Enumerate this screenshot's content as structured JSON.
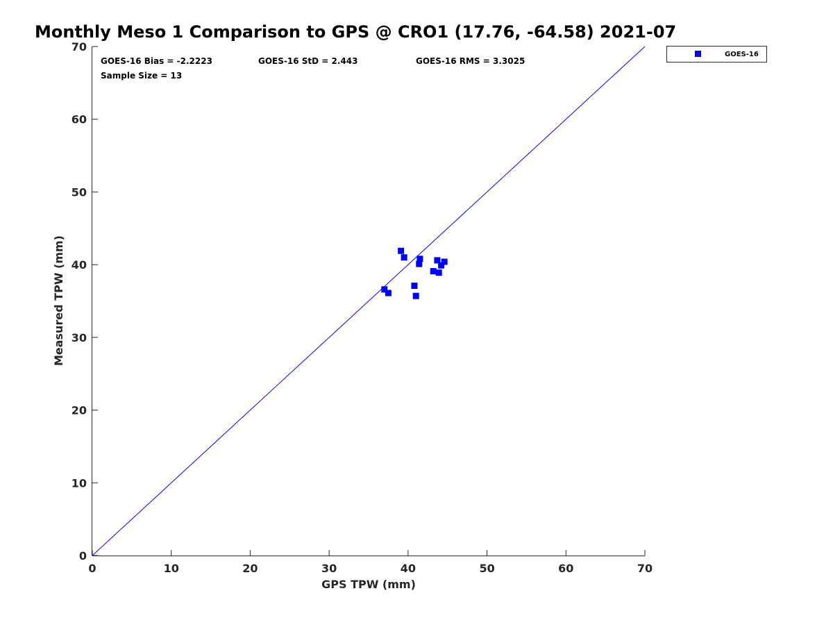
{
  "chart_data": {
    "type": "scatter",
    "title": "Monthly Meso 1 Comparison to GPS @ CRO1 (17.76, -64.58) 2021-07",
    "xlabel": "GPS TPW (mm)",
    "ylabel": "Measured TPW (mm)",
    "xlim": [
      0,
      70
    ],
    "ylim": [
      0,
      70
    ],
    "xticks": [
      "0",
      "10",
      "20",
      "30",
      "40",
      "50",
      "60",
      "70"
    ],
    "yticks": [
      "0",
      "10",
      "20",
      "30",
      "40",
      "50",
      "60",
      "70"
    ],
    "grid": false,
    "legend_position": "top-right, outside plot area",
    "reference_line": {
      "from": [
        0,
        0
      ],
      "to": [
        70,
        70
      ],
      "color": "#0000ff"
    },
    "stats": {
      "bias": "GOES-16 Bias = -2.2223",
      "std": "GOES-16 StD = 2.443",
      "rms": "GOES-16 RMS = 3.3025",
      "sample": "Sample Size = 13"
    },
    "series": [
      {
        "name": "GOES-16",
        "color": "#0000ff",
        "marker": "square",
        "points": [
          {
            "x": 37.0,
            "y": 36.6
          },
          {
            "x": 37.5,
            "y": 36.1
          },
          {
            "x": 39.1,
            "y": 41.9
          },
          {
            "x": 39.5,
            "y": 41.0
          },
          {
            "x": 40.8,
            "y": 37.1
          },
          {
            "x": 41.0,
            "y": 35.7
          },
          {
            "x": 41.4,
            "y": 40.1
          },
          {
            "x": 41.5,
            "y": 40.8
          },
          {
            "x": 43.2,
            "y": 39.1
          },
          {
            "x": 43.7,
            "y": 40.6
          },
          {
            "x": 43.9,
            "y": 38.9
          },
          {
            "x": 44.2,
            "y": 39.9
          },
          {
            "x": 44.6,
            "y": 40.4
          }
        ]
      }
    ]
  }
}
